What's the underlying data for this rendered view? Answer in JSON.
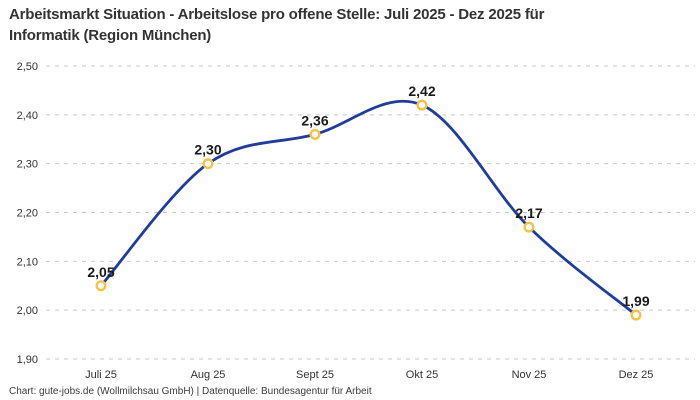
{
  "page": {
    "title_line1": "Arbeitsmarkt Situation - Arbeitslose pro offene Stelle: Juli 2025 - Dez 2025 für",
    "title_line2": "Informatik (Region München)",
    "footer": "Chart: gute-jobs.de (Wollmilchsau GmbH) | Datenquelle: Bundesagentur für Arbeit"
  },
  "theme": {
    "background": "#ffffff",
    "line_color": "#1f3d99",
    "marker_stroke": "#f6c243",
    "marker_fill": "#ffffff",
    "grid_color": "#c9c9c9",
    "axis_text_color": "#333333",
    "value_label_color": "#1a1a1a",
    "title_color": "#333333",
    "footer_color": "#3c3c3c"
  },
  "chart_data": {
    "type": "line",
    "title": "Arbeitsmarkt Situation - Arbeitslose pro offene Stelle: Juli 2025 - Dez 2025 für Informatik (Region München)",
    "categories": [
      "Juli 25",
      "Aug 25",
      "Sept 25",
      "Okt 25",
      "Nov 25",
      "Dez 25"
    ],
    "series": [
      {
        "name": "Arbeitslose pro offene Stelle",
        "values": [
          2.05,
          2.3,
          2.36,
          2.42,
          2.17,
          1.99
        ]
      }
    ],
    "value_labels": [
      "2,05",
      "2,30",
      "2,36",
      "2,42",
      "2,17",
      "1,99"
    ],
    "ytick_labels": [
      "2,50",
      "2,40",
      "2,30",
      "2,20",
      "2,10",
      "2,00",
      "1,90"
    ],
    "ylim": [
      1.9,
      2.5
    ],
    "ytick_step": 0.1,
    "xlabel": "",
    "ylabel": "",
    "grid": "horizontal-dashed",
    "legend": "none",
    "curve": "smooth"
  }
}
